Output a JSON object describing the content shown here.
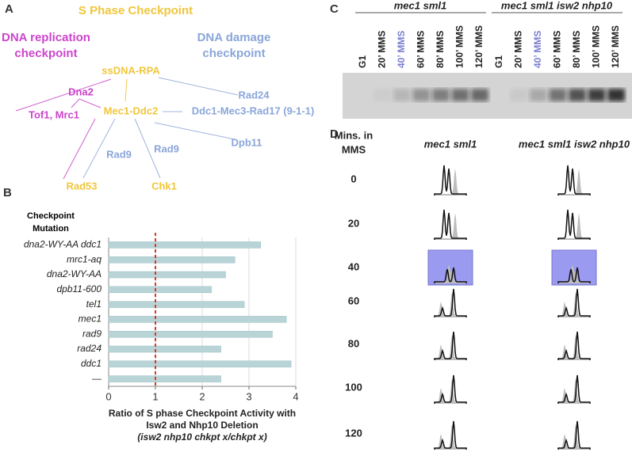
{
  "panel_a": {
    "letter": "A",
    "title": "S Phase Checkpoint",
    "nodes": [
      {
        "label": "DNA replication"
      },
      {
        "label": "checkpoint"
      },
      {
        "label": "DNA damage"
      },
      {
        "label": "checkpoint"
      },
      {
        "label": "ssDNA-RPA"
      },
      {
        "label": "Dna2"
      },
      {
        "label": "Rad24"
      },
      {
        "label": "Mec1-Ddc2"
      },
      {
        "label": "Ddc1-Mec3-Rad17 (9-1-1)"
      },
      {
        "label": "Tof1, Mrc1"
      },
      {
        "label": "Rad9"
      },
      {
        "label": "Rad9"
      },
      {
        "label": "Dpb11"
      },
      {
        "label": "Rad53"
      },
      {
        "label": "Chk1"
      }
    ]
  },
  "chart_data": {
    "type": "hbar",
    "letter": "B",
    "ylabel": [
      "Checkpoint",
      "Mutation"
    ],
    "categories": [
      "dna2-WY-AA ddc1",
      "mrc1-aq",
      "dna2-WY-AA",
      "dpb11-600",
      "tel1",
      "mec1",
      "rad9",
      "rad24",
      "ddc1",
      "—"
    ],
    "values": [
      3.25,
      2.7,
      2.5,
      2.2,
      2.9,
      3.8,
      3.5,
      2.4,
      3.9,
      2.4
    ],
    "color": "#b9d4d7",
    "xlim": [
      0,
      4
    ],
    "xticks": [
      0,
      1,
      2,
      3,
      4
    ],
    "grid": true,
    "reference_line": 1,
    "reference_color": "#d9382a",
    "xlabel": [
      "Ratio of S phase Checkpoint Activity with",
      "Isw2 and Nhp10 Deletion",
      "(isw2 nhp10 chkpt x/chkpt x)"
    ]
  },
  "panel_c": {
    "letter": "C",
    "groups": [
      "mec1 sml1",
      "mec1 sml1 isw2 nhp10"
    ],
    "lanes": [
      "G1",
      "20’ MMS",
      "40’ MMS",
      "60’ MMS",
      "80’ MMS",
      "100’ MMS",
      "120’ MMS"
    ]
  },
  "panel_d": {
    "letter": "D",
    "header": [
      "Mins. in",
      "MMS"
    ],
    "columns": [
      "mec1 sml1",
      "mec1 sml1 isw2 nhp10"
    ],
    "rows": [
      "0",
      "20",
      "40",
      "60",
      "80",
      "100",
      "120"
    ]
  }
}
